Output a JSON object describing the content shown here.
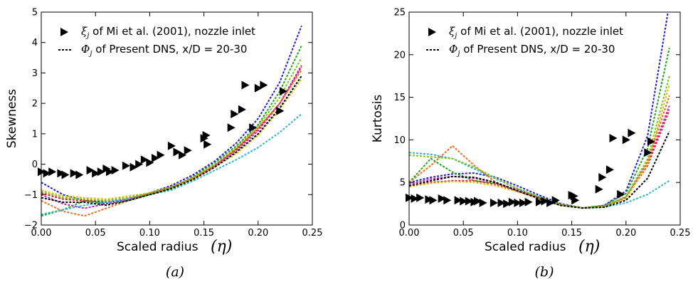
{
  "chart_data": [
    {
      "panel": "(a)",
      "type": "line",
      "xlabel": "Scaled radius",
      "xsymbol": "(η)",
      "ylabel": "Skewness",
      "xlim": [
        0.0,
        0.25
      ],
      "ylim": [
        -2,
        5
      ],
      "xticks": [
        "0.00",
        "0.05",
        "0.10",
        "0.15",
        "0.20",
        "0.25"
      ],
      "yticks": [
        "−2",
        "−1",
        "0",
        "1",
        "2",
        "3",
        "4",
        "5"
      ],
      "legend": [
        {
          "symbol": "ξ",
          "sub": "j",
          "text": " of Mi et al. (2001), nozzle inlet",
          "marker": "triangle"
        },
        {
          "symbol": "Φ",
          "sub": "j",
          "text": " of Present DNS, x/D = 20-30",
          "marker": "dotted-line"
        }
      ],
      "experiment": {
        "x": [
          0.0,
          0.005,
          0.01,
          0.018,
          0.022,
          0.03,
          0.035,
          0.045,
          0.05,
          0.055,
          0.06,
          0.063,
          0.068,
          0.078,
          0.085,
          0.09,
          0.095,
          0.1,
          0.105,
          0.11,
          0.12,
          0.125,
          0.13,
          0.135,
          0.15,
          0.152,
          0.153,
          0.175,
          0.178,
          0.185,
          0.188,
          0.195,
          0.2,
          0.205,
          0.22,
          0.223
        ],
        "y": [
          -0.25,
          -0.3,
          -0.25,
          -0.3,
          -0.35,
          -0.3,
          -0.35,
          -0.2,
          -0.3,
          -0.25,
          -0.15,
          -0.25,
          -0.2,
          -0.05,
          -0.1,
          0.0,
          0.15,
          0.05,
          0.2,
          0.3,
          0.6,
          0.4,
          0.3,
          0.45,
          0.85,
          0.95,
          0.65,
          1.2,
          1.65,
          1.8,
          2.6,
          1.2,
          2.5,
          2.6,
          1.75,
          2.4
        ]
      },
      "series": [
        {
          "color": "#1f1fcf",
          "x": [
            0,
            0.02,
            0.04,
            0.06,
            0.08,
            0.1,
            0.12,
            0.14,
            0.16,
            0.18,
            0.2,
            0.22,
            0.24
          ],
          "y": [
            -0.6,
            -1.0,
            -1.2,
            -1.25,
            -1.15,
            -0.95,
            -0.7,
            -0.35,
            0.1,
            0.7,
            1.5,
            2.7,
            4.55
          ]
        },
        {
          "color": "#1aa31a",
          "x": [
            0,
            0.02,
            0.04,
            0.06,
            0.08,
            0.1,
            0.12,
            0.14,
            0.16,
            0.18,
            0.2,
            0.22,
            0.24
          ],
          "y": [
            -1.7,
            -1.5,
            -1.2,
            -1.3,
            -1.2,
            -1.0,
            -0.8,
            -0.4,
            0.05,
            0.6,
            1.3,
            2.4,
            3.9
          ]
        },
        {
          "color": "#e22020",
          "x": [
            0,
            0.02,
            0.04,
            0.06,
            0.08,
            0.1,
            0.12,
            0.14,
            0.16,
            0.18,
            0.2,
            0.22,
            0.24
          ],
          "y": [
            -0.95,
            -1.15,
            -1.2,
            -1.2,
            -1.1,
            -0.95,
            -0.75,
            -0.45,
            -0.05,
            0.5,
            1.15,
            2.0,
            3.2
          ]
        },
        {
          "color": "#bf1fbf",
          "x": [
            0,
            0.02,
            0.04,
            0.06,
            0.08,
            0.1,
            0.12,
            0.14,
            0.16,
            0.18,
            0.2,
            0.22,
            0.24
          ],
          "y": [
            -1.0,
            -1.3,
            -1.45,
            -1.3,
            -1.15,
            -0.95,
            -0.75,
            -0.45,
            -0.05,
            0.45,
            1.1,
            2.0,
            3.25
          ]
        },
        {
          "color": "#d4c21a",
          "x": [
            0,
            0.02,
            0.04,
            0.06,
            0.08,
            0.1,
            0.12,
            0.14,
            0.16,
            0.18,
            0.2,
            0.22,
            0.24
          ],
          "y": [
            -0.85,
            -1.05,
            -1.1,
            -1.15,
            -1.05,
            -0.95,
            -0.8,
            -0.5,
            -0.1,
            0.35,
            0.95,
            1.8,
            2.8
          ]
        },
        {
          "color": "#28b8d0",
          "x": [
            0,
            0.02,
            0.04,
            0.06,
            0.08,
            0.1,
            0.12,
            0.14,
            0.16,
            0.18,
            0.2,
            0.22,
            0.24
          ],
          "y": [
            -1.65,
            -1.5,
            -1.35,
            -1.25,
            -1.15,
            -1.0,
            -0.85,
            -0.55,
            -0.2,
            0.15,
            0.55,
            1.05,
            1.65
          ]
        },
        {
          "color": "#f06a1a",
          "x": [
            0,
            0.02,
            0.04,
            0.06,
            0.08,
            0.1,
            0.12,
            0.14,
            0.16,
            0.18,
            0.2,
            0.22,
            0.24
          ],
          "y": [
            -1.2,
            -1.55,
            -1.7,
            -1.45,
            -1.2,
            -0.95,
            -0.75,
            -0.45,
            -0.05,
            0.5,
            1.2,
            2.0,
            3.1
          ]
        },
        {
          "color": "#7fc21a",
          "x": [
            0,
            0.02,
            0.04,
            0.06,
            0.08,
            0.1,
            0.12,
            0.14,
            0.16,
            0.18,
            0.2,
            0.22,
            0.24
          ],
          "y": [
            -0.9,
            -1.1,
            -1.15,
            -1.2,
            -1.1,
            -0.95,
            -0.75,
            -0.45,
            0.0,
            0.55,
            1.25,
            2.2,
            3.5
          ]
        },
        {
          "color": "#000000",
          "x": [
            0,
            0.02,
            0.04,
            0.06,
            0.08,
            0.1,
            0.12,
            0.14,
            0.16,
            0.18,
            0.2,
            0.22,
            0.24
          ],
          "y": [
            -1.1,
            -1.25,
            -1.25,
            -1.35,
            -1.2,
            -1.0,
            -0.8,
            -0.5,
            -0.1,
            0.4,
            1.0,
            1.85,
            2.9
          ]
        }
      ]
    },
    {
      "panel": "(b)",
      "type": "line",
      "xlabel": "Scaled radius",
      "xsymbol": "(η)",
      "ylabel": "Kurtosis",
      "xlim": [
        0.0,
        0.25
      ],
      "ylim": [
        0,
        25
      ],
      "xticks": [
        "0.00",
        "0.05",
        "0.10",
        "0.15",
        "0.20",
        "0.25"
      ],
      "yticks": [
        "0",
        "5",
        "10",
        "15",
        "20",
        "25"
      ],
      "legend": [
        {
          "symbol": "ξ",
          "sub": "j",
          "text": " of Mi et al. (2001), nozzle inlet",
          "marker": "triangle"
        },
        {
          "symbol": "Φ",
          "sub": "j",
          "text": " of Present DNS, x/D = 20-30",
          "marker": "dotted-line"
        }
      ],
      "experiment": {
        "x": [
          0.0,
          0.005,
          0.01,
          0.018,
          0.022,
          0.03,
          0.035,
          0.045,
          0.05,
          0.055,
          0.06,
          0.063,
          0.068,
          0.078,
          0.085,
          0.09,
          0.095,
          0.1,
          0.105,
          0.11,
          0.12,
          0.125,
          0.13,
          0.135,
          0.15,
          0.152,
          0.153,
          0.175,
          0.178,
          0.185,
          0.188,
          0.195,
          0.2,
          0.205,
          0.22,
          0.223
        ],
        "y": [
          3.2,
          3.1,
          3.2,
          3.0,
          2.9,
          3.1,
          2.9,
          2.9,
          2.8,
          2.8,
          2.7,
          2.8,
          2.6,
          2.6,
          2.6,
          2.5,
          2.7,
          2.6,
          2.6,
          2.7,
          2.7,
          2.8,
          2.6,
          2.9,
          3.5,
          3.4,
          2.9,
          4.2,
          5.6,
          6.5,
          10.2,
          3.6,
          10.0,
          10.8,
          8.5,
          9.8
        ]
      },
      "series": [
        {
          "color": "#1f1fcf",
          "x": [
            0,
            0.02,
            0.04,
            0.06,
            0.08,
            0.1,
            0.12,
            0.14,
            0.16,
            0.18,
            0.2,
            0.22,
            0.24
          ],
          "y": [
            5.0,
            5.6,
            6.0,
            6.1,
            5.6,
            4.6,
            3.5,
            2.5,
            2.0,
            2.3,
            4.0,
            10.5,
            26.0
          ]
        },
        {
          "color": "#1aa31a",
          "x": [
            0,
            0.02,
            0.04,
            0.06,
            0.08,
            0.1,
            0.12,
            0.14,
            0.16,
            0.18,
            0.2,
            0.22,
            0.24
          ],
          "y": [
            5.0,
            7.8,
            6.2,
            5.2,
            4.9,
            4.2,
            3.3,
            2.4,
            2.0,
            2.3,
            3.7,
            9.0,
            20.8
          ]
        },
        {
          "color": "#e22020",
          "x": [
            0,
            0.02,
            0.04,
            0.06,
            0.08,
            0.1,
            0.12,
            0.14,
            0.16,
            0.18,
            0.2,
            0.22,
            0.24
          ],
          "y": [
            4.5,
            5.0,
            5.2,
            5.2,
            4.8,
            4.0,
            3.2,
            2.4,
            2.0,
            2.2,
            3.2,
            7.0,
            13.5
          ]
        },
        {
          "color": "#bf1fbf",
          "x": [
            0,
            0.02,
            0.04,
            0.06,
            0.08,
            0.1,
            0.12,
            0.14,
            0.16,
            0.18,
            0.2,
            0.22,
            0.24
          ],
          "y": [
            4.8,
            5.4,
            5.7,
            5.5,
            5.0,
            4.1,
            3.2,
            2.4,
            2.0,
            2.2,
            3.3,
            7.3,
            14.0
          ]
        },
        {
          "color": "#d4c21a",
          "x": [
            0,
            0.02,
            0.04,
            0.06,
            0.08,
            0.1,
            0.12,
            0.14,
            0.16,
            0.18,
            0.2,
            0.22,
            0.24
          ],
          "y": [
            4.5,
            4.9,
            5.1,
            5.0,
            4.6,
            3.9,
            3.1,
            2.3,
            2.0,
            2.2,
            3.1,
            7.2,
            16.5
          ]
        },
        {
          "color": "#28b8d0",
          "x": [
            0,
            0.02,
            0.04,
            0.06,
            0.08,
            0.1,
            0.12,
            0.14,
            0.16,
            0.18,
            0.2,
            0.22,
            0.24
          ],
          "y": [
            8.5,
            8.3,
            7.8,
            6.6,
            5.4,
            4.3,
            3.3,
            2.4,
            2.0,
            2.1,
            2.6,
            3.6,
            5.2
          ]
        },
        {
          "color": "#f06a1a",
          "x": [
            0,
            0.02,
            0.04,
            0.06,
            0.08,
            0.1,
            0.12,
            0.14,
            0.16,
            0.18,
            0.2,
            0.22,
            0.24
          ],
          "y": [
            5.0,
            7.0,
            9.3,
            7.0,
            5.0,
            4.0,
            3.1,
            2.4,
            2.0,
            2.2,
            3.3,
            7.5,
            15.2
          ]
        },
        {
          "color": "#7fc21a",
          "x": [
            0,
            0.02,
            0.04,
            0.06,
            0.08,
            0.1,
            0.12,
            0.14,
            0.16,
            0.18,
            0.2,
            0.22,
            0.24
          ],
          "y": [
            8.2,
            8.0,
            7.8,
            6.8,
            5.5,
            4.3,
            3.3,
            2.4,
            2.0,
            2.2,
            3.3,
            7.8,
            17.5
          ]
        },
        {
          "color": "#000000",
          "x": [
            0,
            0.02,
            0.04,
            0.06,
            0.08,
            0.1,
            0.12,
            0.14,
            0.16,
            0.18,
            0.2,
            0.22,
            0.24
          ],
          "y": [
            4.6,
            5.2,
            5.7,
            5.6,
            5.0,
            4.0,
            3.1,
            2.3,
            2.0,
            2.1,
            2.9,
            5.5,
            11.0
          ]
        }
      ]
    }
  ]
}
